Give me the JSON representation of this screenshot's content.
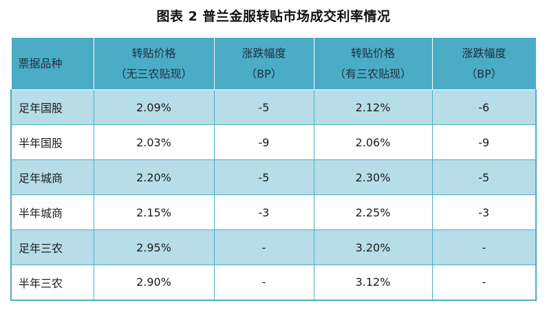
{
  "title": "图表 2  普兰金服转贴市场成交利率情况",
  "table": {
    "headers": [
      {
        "line1": "票据品种",
        "line2": ""
      },
      {
        "line1": "转贴价格",
        "line2": "（无三农贴现）"
      },
      {
        "line1": "涨跌幅度",
        "line2": "（BP）"
      },
      {
        "line1": "转贴价格",
        "line2": "（有三农贴现）"
      },
      {
        "line1": "涨跌幅度",
        "line2": "（BP）"
      }
    ],
    "rows": [
      [
        "足年国股",
        "2.09%",
        "-5",
        "2.12%",
        "-6"
      ],
      [
        "半年国股",
        "2.03%",
        "-9",
        "2.06%",
        "-9"
      ],
      [
        "足年城商",
        "2.20%",
        "-5",
        "2.30%",
        "-5"
      ],
      [
        "半年城商",
        "2.15%",
        "-3",
        "2.25%",
        "-3"
      ],
      [
        "足年三农",
        "2.95%",
        "-",
        "3.20%",
        "-"
      ],
      [
        "半年三农",
        "2.90%",
        "-",
        "3.12%",
        "-"
      ]
    ]
  },
  "colors": {
    "header_bg": "#4bacc6",
    "shade_row_bg": "#b6dde8",
    "plain_row_bg": "#ffffff"
  }
}
